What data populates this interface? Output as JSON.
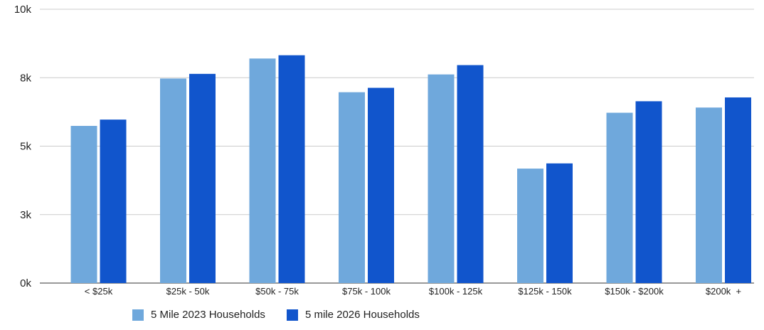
{
  "chart_data": {
    "type": "bar",
    "title": "",
    "xlabel": "",
    "ylabel": "",
    "categories": [
      "< $25k",
      "$25k - 50k",
      "$50k - 75k",
      "$75k - 100k",
      "$100k - 125k",
      "$125k - 150k",
      "$150k - $200k",
      "$200k  +"
    ],
    "series": [
      {
        "name": "5 Mile 2023 Households",
        "color": "#6fa8dc",
        "values": [
          5740,
          7470,
          8200,
          6970,
          7620,
          4180,
          6220,
          6410
        ]
      },
      {
        "name": "5 mile 2026 Households",
        "color": "#1155cc",
        "values": [
          5970,
          7640,
          8320,
          7130,
          7960,
          4370,
          6640,
          6780
        ]
      }
    ],
    "ylim": [
      0,
      10000
    ],
    "yticks": [
      {
        "value": 0,
        "label": "0k"
      },
      {
        "value": 2500,
        "label": "3k"
      },
      {
        "value": 5000,
        "label": "5k"
      },
      {
        "value": 7500,
        "label": "8k"
      },
      {
        "value": 10000,
        "label": "10k"
      }
    ],
    "grid": true,
    "legend_position": "bottom"
  }
}
